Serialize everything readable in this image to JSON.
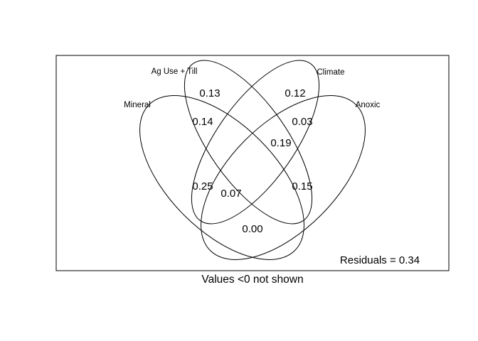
{
  "venn": {
    "sets": {
      "ag_use_till": "Ag Use + Till",
      "climate": "Climate",
      "mineral": "Mineral",
      "anoxic": "Anoxic"
    },
    "regions": {
      "ag_only": "0.13",
      "climate_only": "0.12",
      "mineral_ag": "0.14",
      "climate_anoxic": "0.03",
      "ag_climate": "0.19",
      "mineral_climate": "0.25",
      "ag_anoxic": "0.15",
      "center": "0.07",
      "mineral_anoxic": "0.00"
    },
    "residuals": "Residuals = 0.34",
    "footnote": "Values <0 not shown"
  }
}
